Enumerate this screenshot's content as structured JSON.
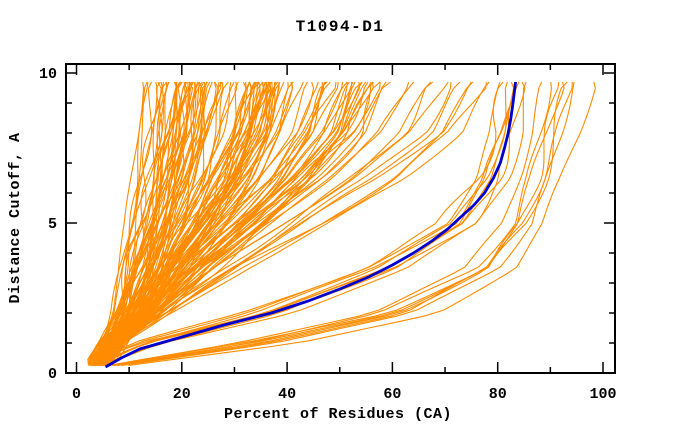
{
  "colors": {
    "background": "#FFFFFF",
    "axis": "#000000",
    "text": "#000000",
    "prediction_orange": "#FF8C00",
    "highlight_blue": "#0000CD"
  },
  "chart_data": {
    "type": "line",
    "title": "T1094-D1",
    "xlabel": "Percent of Residues (CA)",
    "ylabel": "Distance Cutoff, A",
    "xlim": [
      0,
      100
    ],
    "ylim": [
      0,
      10
    ],
    "grid": "off",
    "legend": "none",
    "x_major_ticks": [
      0,
      20,
      40,
      60,
      80,
      100
    ],
    "x_minor_ticks": [
      10,
      30,
      50,
      70,
      90
    ],
    "y_major_ticks": [
      0,
      5,
      10
    ],
    "y_minor_ticks": [
      1,
      2,
      3,
      4,
      6,
      7,
      8,
      9
    ],
    "axis_color": "#000000",
    "line_color": "#FF8C00",
    "highlight_color": "#0000CD",
    "cutoff_levels": [
      0.25,
      1,
      2,
      3.5,
      5,
      6.5,
      8,
      9.7
    ],
    "highlight_series": {
      "name": "highlighted-model",
      "cutoffs": [
        0.2,
        0.5,
        0.8,
        1.2,
        1.6,
        2.0,
        2.4,
        2.8,
        3.2,
        3.6,
        4.0,
        4.4,
        4.8,
        5.2,
        5.6,
        6.0,
        6.5,
        7.0,
        7.5,
        8.0,
        8.5,
        9.0,
        9.4,
        9.7
      ],
      "percents": [
        5.5,
        8.5,
        12,
        20,
        28,
        37,
        44,
        50,
        55.5,
        60,
        64,
        67.5,
        70.5,
        73,
        75.5,
        77.5,
        79.2,
        80.5,
        81.3,
        82,
        82.5,
        82.9,
        83.2,
        83.4
      ]
    },
    "orange_curves": [
      [
        2.5,
        4.5,
        6.5,
        8,
        9.5,
        10.5,
        11.5,
        12.5
      ],
      [
        3,
        5,
        7,
        8.5,
        10,
        11.5,
        12.5,
        13.5
      ],
      [
        2.8,
        5,
        7.5,
        9,
        10.8,
        12.2,
        13.5,
        14.5
      ],
      [
        3.5,
        5.5,
        8,
        9.8,
        11.5,
        13,
        14.2,
        15.2
      ],
      [
        3,
        5.2,
        8,
        10,
        12,
        13.8,
        15,
        16
      ],
      [
        3.8,
        6,
        8.8,
        11,
        13,
        14.8,
        16,
        17
      ],
      [
        2.6,
        5,
        8,
        10.5,
        12.8,
        15,
        16.5,
        17.8
      ],
      [
        3.2,
        5.6,
        8.6,
        11.2,
        13.6,
        15.8,
        17.5,
        18.6
      ],
      [
        4,
        6.5,
        9.5,
        12,
        14.5,
        16.5,
        18,
        19.2
      ],
      [
        3,
        5.8,
        9,
        11.8,
        14.5,
        16.8,
        18.6,
        20
      ],
      [
        3.6,
        6.2,
        9.6,
        12.5,
        15.2,
        17.5,
        19.4,
        20.8
      ],
      [
        4.2,
        7,
        10.2,
        13.2,
        16,
        18.4,
        20.2,
        21.5
      ],
      [
        2.8,
        5.6,
        9.2,
        12.4,
        15.5,
        18.2,
        20.4,
        22
      ],
      [
        3.4,
        6.3,
        10,
        13.3,
        16.4,
        19.2,
        21.4,
        23
      ],
      [
        4,
        7,
        10.8,
        14.2,
        17.4,
        20.2,
        22.4,
        24
      ],
      [
        3.2,
        6.2,
        10,
        13.6,
        17,
        20,
        22.6,
        24.8
      ],
      [
        4.5,
        7.6,
        11.4,
        15,
        18.4,
        21.4,
        23.8,
        25.5
      ],
      [
        3.8,
        7,
        11,
        14.8,
        18.4,
        21.6,
        24.2,
        26
      ],
      [
        2.4,
        4.8,
        7.8,
        10.2,
        12.6,
        14.6,
        16.2,
        17.4
      ],
      [
        3.1,
        5.9,
        9.3,
        12.1,
        14.9,
        17.3,
        19.1,
        20.4
      ],
      [
        3.9,
        6.6,
        10,
        13,
        16,
        18.6,
        20.8,
        22.3
      ],
      [
        2.7,
        5.3,
        8.4,
        11,
        13.5,
        15.7,
        17.4,
        18.8
      ],
      [
        3.3,
        6,
        9.4,
        12.3,
        15.1,
        17.6,
        19.6,
        21
      ],
      [
        4.1,
        7.2,
        11.2,
        14.6,
        18,
        21,
        23.4,
        25.2
      ],
      [
        2.9,
        5.5,
        8.8,
        11.6,
        14.3,
        16.7,
        18.6,
        20
      ],
      [
        3.5,
        6.4,
        10.2,
        13.5,
        16.7,
        19.5,
        21.8,
        23.4
      ],
      [
        3,
        5,
        10,
        14,
        18.5,
        22.5,
        25.5,
        27.5
      ],
      [
        3.5,
        5.5,
        10.5,
        15,
        19.5,
        23.5,
        26.8,
        29
      ],
      [
        2.8,
        5,
        10.5,
        15.2,
        20,
        24.5,
        28,
        30
      ],
      [
        4,
        6.2,
        11.5,
        16.2,
        21,
        25.5,
        29,
        31
      ],
      [
        3.2,
        5.5,
        11,
        16,
        21.5,
        26,
        29.8,
        32
      ],
      [
        3.8,
        6,
        11.8,
        17,
        22.5,
        27.2,
        31,
        33
      ],
      [
        2.6,
        5,
        11,
        16.5,
        22.2,
        27.5,
        31.5,
        34
      ],
      [
        3.4,
        5.8,
        11.8,
        17.5,
        23.2,
        28.5,
        32.5,
        35
      ],
      [
        4.2,
        6.8,
        13,
        19,
        25,
        30,
        33.8,
        36
      ],
      [
        3,
        5.6,
        12,
        18,
        24,
        29.5,
        33.8,
        36.5
      ],
      [
        3.6,
        6.2,
        12.6,
        18.8,
        25,
        30.8,
        35,
        37.5
      ],
      [
        4,
        6.8,
        13.4,
        19.8,
        26,
        31.8,
        36,
        38.5
      ],
      [
        3.2,
        5.8,
        11.5,
        16.8,
        22,
        26.8,
        30.5,
        32.8
      ],
      [
        2.9,
        5.3,
        11.2,
        16.6,
        22,
        27,
        31,
        33.5
      ],
      [
        3.7,
        6.3,
        12.3,
        18,
        23.8,
        29,
        33,
        35.5
      ],
      [
        4.3,
        7,
        13.6,
        20,
        26.2,
        32,
        36.2,
        38.8
      ],
      [
        3.1,
        5.7,
        11.7,
        17.2,
        22.8,
        28,
        32,
        34.5
      ],
      [
        3.9,
        6.5,
        12.8,
        18.6,
        24.5,
        30,
        34,
        36.4
      ],
      [
        2.7,
        5.2,
        11,
        16.2,
        21.5,
        26.5,
        30.2,
        32.4
      ],
      [
        3.3,
        6,
        12.2,
        18,
        24,
        29.5,
        33.5,
        36
      ],
      [
        4.1,
        6.9,
        13.2,
        19.4,
        25.6,
        31.4,
        35.6,
        38
      ],
      [
        3.5,
        6.1,
        12,
        17.6,
        23.3,
        28.6,
        32.6,
        35
      ],
      [
        3,
        5.5,
        11.5,
        18,
        25.5,
        32.5,
        37.5,
        40.5
      ],
      [
        3.6,
        6.2,
        12.5,
        19.5,
        27.5,
        34.5,
        39.8,
        43
      ],
      [
        2.8,
        5.6,
        12,
        19,
        27,
        34.8,
        40.5,
        44
      ],
      [
        4,
        6.8,
        13.5,
        21,
        29.5,
        37.5,
        43.2,
        46.5
      ],
      [
        3.2,
        6,
        12.8,
        20.2,
        28.8,
        37,
        43,
        47
      ],
      [
        3.8,
        6.8,
        14,
        22,
        31,
        39.5,
        45.8,
        49.5
      ],
      [
        2.6,
        5.4,
        12.2,
        19.8,
        28.5,
        37,
        43.5,
        48
      ],
      [
        3.4,
        6.4,
        13.6,
        21.8,
        31,
        40,
        46.5,
        50.5
      ],
      [
        4.2,
        7.4,
        15,
        24,
        33.5,
        42.5,
        49,
        52.5
      ],
      [
        3,
        6,
        13.2,
        21.5,
        31,
        40.5,
        47.5,
        52
      ],
      [
        3.6,
        6.8,
        14.4,
        23.2,
        33,
        42.8,
        50,
        54.5
      ],
      [
        4,
        7.2,
        15.2,
        24.5,
        34.5,
        44.5,
        52,
        56
      ],
      [
        3.2,
        6.4,
        13.8,
        22.5,
        32.5,
        42.5,
        50,
        55
      ],
      [
        3.8,
        7,
        15,
        24.2,
        34.8,
        45,
        52.8,
        57.5
      ],
      [
        2.9,
        5.8,
        13,
        21.2,
        30.8,
        40.2,
        47.2,
        51.5
      ],
      [
        3.5,
        6.6,
        14.2,
        23,
        33,
        43,
        50.5,
        55.5
      ],
      [
        3,
        6,
        14,
        23.5,
        34,
        44.5,
        53.5,
        60
      ],
      [
        3.5,
        6.8,
        15,
        25.5,
        37,
        48.5,
        57.5,
        63
      ],
      [
        2.8,
        6,
        14.5,
        25,
        36.5,
        48,
        57.5,
        64
      ],
      [
        4,
        7.5,
        16.5,
        28,
        40.5,
        52.5,
        62,
        67.5
      ],
      [
        3.2,
        6.6,
        15.5,
        26.5,
        39,
        51.5,
        61.5,
        68
      ],
      [
        3.8,
        7.4,
        16.8,
        29,
        42.5,
        55.5,
        65.5,
        71
      ],
      [
        2.6,
        6,
        15,
        26.5,
        39.5,
        52.5,
        63.5,
        70.5
      ],
      [
        3.4,
        7,
        16.5,
        29,
        43,
        56.5,
        67,
        73
      ],
      [
        4.2,
        8,
        18,
        31.5,
        46,
        60,
        70,
        75.5
      ],
      [
        3,
        6.8,
        16.2,
        29,
        43.5,
        57.5,
        68.5,
        75
      ],
      [
        3.6,
        7.6,
        17.5,
        31,
        46,
        60.5,
        71.5,
        77.5
      ],
      [
        4,
        8.2,
        18.5,
        32.5,
        48,
        62.5,
        73,
        78.5
      ],
      [
        3,
        12,
        33,
        55,
        70,
        76,
        79,
        80.5
      ],
      [
        3.6,
        13,
        35,
        57,
        72,
        78,
        80.6,
        82
      ],
      [
        4,
        15,
        39,
        61,
        75,
        80.5,
        83,
        84.3
      ],
      [
        2.8,
        11.5,
        32,
        54,
        69.5,
        76,
        79.5,
        81.2
      ],
      [
        3.4,
        13.5,
        36.5,
        58.5,
        73,
        79,
        81.8,
        83.2
      ],
      [
        4.2,
        16,
        40.5,
        63,
        76.5,
        82,
        84.4,
        85.6
      ],
      [
        3.2,
        12.5,
        34.5,
        56.5,
        71.5,
        77.8,
        80.8,
        82.4
      ],
      [
        3.8,
        14.5,
        38,
        60,
        74.5,
        80,
        82.6,
        84
      ],
      [
        3,
        13,
        36,
        58,
        72.5,
        78.6,
        81.4,
        83
      ],
      [
        6,
        30,
        56,
        74,
        81,
        84,
        86.5,
        88.5
      ],
      [
        7,
        33,
        58,
        76,
        83,
        86,
        88,
        90
      ],
      [
        8,
        36,
        61,
        78,
        84.5,
        87.5,
        89.5,
        91.5
      ],
      [
        6.5,
        32,
        59,
        77,
        84,
        87,
        89.5,
        92
      ],
      [
        7.5,
        35,
        62,
        79,
        85.5,
        88.5,
        91,
        93.5
      ],
      [
        8.5,
        38,
        64,
        80,
        86.5,
        89.5,
        92,
        94.5
      ],
      [
        7,
        34,
        60,
        78,
        85,
        88.5,
        91.5,
        94
      ],
      [
        10,
        42,
        68,
        83,
        89,
        92.5,
        95.5,
        98
      ]
    ]
  }
}
